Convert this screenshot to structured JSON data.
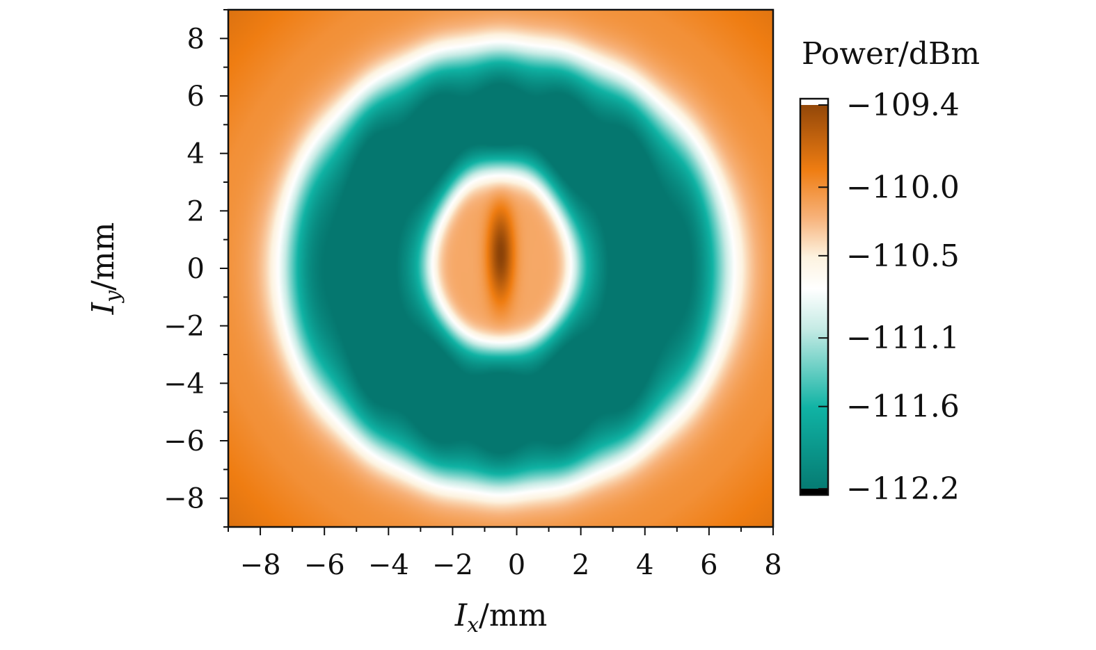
{
  "chart_data": {
    "type": "heatmap",
    "title": "",
    "xlabel": "I_x/mm",
    "ylabel": "I_y/mm",
    "xlabel_parts": {
      "symbol": "I",
      "sub": "x",
      "unit": "/mm"
    },
    "ylabel_parts": {
      "symbol": "I",
      "sub": "y",
      "unit": "/mm"
    },
    "xlim": [
      -9,
      8
    ],
    "ylim": [
      -9,
      9
    ],
    "x_ticks": [
      -8,
      -6,
      -4,
      -2,
      0,
      2,
      4,
      6,
      8
    ],
    "x_tick_labels": [
      "−8",
      "−6",
      "−4",
      "−2",
      "0",
      "2",
      "4",
      "6",
      "8"
    ],
    "y_ticks": [
      8,
      6,
      4,
      2,
      0,
      -2,
      -4,
      -6,
      -8
    ],
    "y_tick_labels": [
      "8",
      "6",
      "4",
      "2",
      "0",
      "−2",
      "−4",
      "−6",
      "−8"
    ],
    "colorbar": {
      "title": "Power/dBm",
      "ticks": [
        -109.4,
        -110.0,
        -110.5,
        -111.1,
        -111.6,
        -112.2
      ],
      "tick_labels": [
        "−109.4",
        "−110.0",
        "−110.5",
        "−111.1",
        "−111.6",
        "−112.2"
      ],
      "range": [
        -112.2,
        -109.4
      ],
      "colors": {
        "top_cap": "#ffffff",
        "dark_brown": "#8a4208",
        "orange": "#ef7d12",
        "light_orange": "#f7b27a",
        "cream": "#fdf3e0",
        "white": "#ffffff",
        "pale_teal": "#c6ebe5",
        "teal": "#10b3a4",
        "dark_teal": "#05776f",
        "bottom_cap": "#000000"
      }
    },
    "field_description": {
      "center_peak": {
        "x": -0.5,
        "y": 0.5,
        "value": -109.6
      },
      "inner_lobe_radius_mm": 2.3,
      "outer_ring_radius_mm": 7.0,
      "ring_value": -111.9,
      "background_value": -110.2
    },
    "grid": false,
    "legend": "colorbar-right"
  }
}
